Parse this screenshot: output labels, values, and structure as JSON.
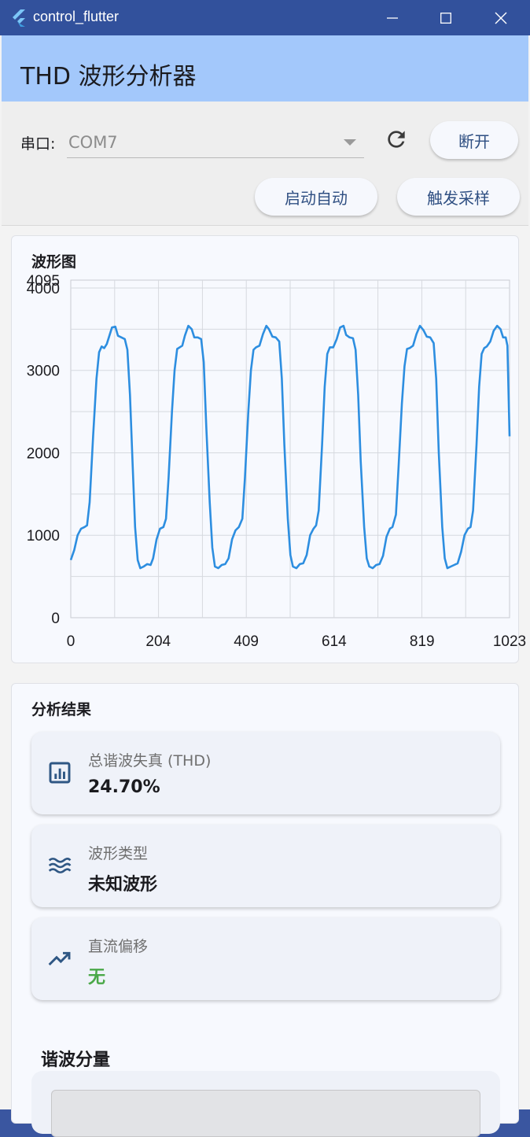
{
  "window": {
    "title": "control_flutter"
  },
  "appbar": {
    "title": "THD 波形分析器"
  },
  "controls": {
    "port_label": "串口:",
    "port_value": "COM7",
    "disconnect_label": "断开",
    "auto_label": "启动自动",
    "trigger_label": "触发采样"
  },
  "waveform": {
    "title": "波形图",
    "top_label": "4095"
  },
  "chart_data": {
    "type": "line",
    "title": "波形图",
    "x_ticks": [
      "0",
      "204",
      "409",
      "614",
      "819",
      "1023"
    ],
    "y_ticks": [
      "0",
      "1000",
      "2000",
      "3000",
      "4000"
    ],
    "xlim": [
      0,
      1023
    ],
    "ylim": [
      0,
      4095
    ],
    "grid": true,
    "color": "#2d8ee0",
    "series": [
      {
        "points": [
          [
            0,
            700
          ],
          [
            8,
            820
          ],
          [
            16,
            1000
          ],
          [
            24,
            1080
          ],
          [
            32,
            1100
          ],
          [
            38,
            1120
          ],
          [
            44,
            1400
          ],
          [
            52,
            2200
          ],
          [
            60,
            2900
          ],
          [
            66,
            3220
          ],
          [
            72,
            3290
          ],
          [
            78,
            3270
          ],
          [
            84,
            3320
          ],
          [
            90,
            3420
          ],
          [
            96,
            3520
          ],
          [
            104,
            3530
          ],
          [
            110,
            3420
          ],
          [
            118,
            3400
          ],
          [
            126,
            3380
          ],
          [
            132,
            3250
          ],
          [
            138,
            2700
          ],
          [
            144,
            1900
          ],
          [
            150,
            1100
          ],
          [
            156,
            700
          ],
          [
            162,
            600
          ],
          [
            170,
            620
          ],
          [
            178,
            650
          ],
          [
            186,
            640
          ],
          [
            192,
            720
          ],
          [
            200,
            950
          ],
          [
            208,
            1080
          ],
          [
            216,
            1100
          ],
          [
            222,
            1200
          ],
          [
            228,
            1700
          ],
          [
            236,
            2500
          ],
          [
            242,
            3000
          ],
          [
            248,
            3260
          ],
          [
            254,
            3280
          ],
          [
            260,
            3300
          ],
          [
            266,
            3420
          ],
          [
            274,
            3540
          ],
          [
            282,
            3500
          ],
          [
            288,
            3400
          ],
          [
            296,
            3400
          ],
          [
            304,
            3380
          ],
          [
            310,
            3100
          ],
          [
            316,
            2300
          ],
          [
            324,
            1400
          ],
          [
            330,
            850
          ],
          [
            336,
            620
          ],
          [
            344,
            600
          ],
          [
            352,
            640
          ],
          [
            360,
            650
          ],
          [
            368,
            720
          ],
          [
            376,
            950
          ],
          [
            384,
            1060
          ],
          [
            392,
            1100
          ],
          [
            400,
            1200
          ],
          [
            406,
            1700
          ],
          [
            414,
            2500
          ],
          [
            420,
            3000
          ],
          [
            426,
            3250
          ],
          [
            432,
            3280
          ],
          [
            440,
            3300
          ],
          [
            448,
            3440
          ],
          [
            456,
            3540
          ],
          [
            462,
            3500
          ],
          [
            470,
            3410
          ],
          [
            478,
            3400
          ],
          [
            486,
            3350
          ],
          [
            492,
            2900
          ],
          [
            498,
            2100
          ],
          [
            506,
            1200
          ],
          [
            512,
            760
          ],
          [
            518,
            620
          ],
          [
            526,
            600
          ],
          [
            534,
            650
          ],
          [
            542,
            660
          ],
          [
            550,
            760
          ],
          [
            558,
            1000
          ],
          [
            566,
            1080
          ],
          [
            572,
            1120
          ],
          [
            578,
            1300
          ],
          [
            586,
            2100
          ],
          [
            592,
            2800
          ],
          [
            598,
            3200
          ],
          [
            604,
            3280
          ],
          [
            612,
            3280
          ],
          [
            620,
            3380
          ],
          [
            628,
            3520
          ],
          [
            636,
            3540
          ],
          [
            642,
            3430
          ],
          [
            650,
            3400
          ],
          [
            658,
            3390
          ],
          [
            664,
            3250
          ],
          [
            670,
            2700
          ],
          [
            676,
            1900
          ],
          [
            684,
            1100
          ],
          [
            690,
            720
          ],
          [
            696,
            620
          ],
          [
            704,
            600
          ],
          [
            712,
            640
          ],
          [
            720,
            650
          ],
          [
            728,
            750
          ],
          [
            736,
            980
          ],
          [
            744,
            1080
          ],
          [
            750,
            1100
          ],
          [
            758,
            1250
          ],
          [
            764,
            1800
          ],
          [
            772,
            2600
          ],
          [
            778,
            3050
          ],
          [
            784,
            3260
          ],
          [
            790,
            3270
          ],
          [
            798,
            3300
          ],
          [
            806,
            3440
          ],
          [
            814,
            3540
          ],
          [
            822,
            3490
          ],
          [
            830,
            3410
          ],
          [
            838,
            3400
          ],
          [
            846,
            3330
          ],
          [
            852,
            2900
          ],
          [
            858,
            2000
          ],
          [
            866,
            1100
          ],
          [
            872,
            720
          ],
          [
            878,
            600
          ],
          [
            886,
            620
          ],
          [
            894,
            640
          ],
          [
            902,
            660
          ],
          [
            910,
            800
          ],
          [
            918,
            1000
          ],
          [
            926,
            1080
          ],
          [
            932,
            1100
          ],
          [
            938,
            1300
          ],
          [
            946,
            2100
          ],
          [
            952,
            2800
          ],
          [
            958,
            3200
          ],
          [
            964,
            3270
          ],
          [
            970,
            3290
          ],
          [
            978,
            3350
          ],
          [
            986,
            3480
          ],
          [
            994,
            3540
          ],
          [
            1002,
            3500
          ],
          [
            1008,
            3400
          ],
          [
            1014,
            3400
          ],
          [
            1018,
            3300
          ],
          [
            1023,
            2200
          ]
        ]
      }
    ]
  },
  "results": {
    "title": "分析结果",
    "thd": {
      "label": "总谐波失真 (THD)",
      "value": "24.70%"
    },
    "wave_type": {
      "label": "波形类型",
      "value": "未知波形"
    },
    "dc_offset": {
      "label": "直流偏移",
      "value": "无",
      "value_color": "#4aa848"
    }
  },
  "harmonics": {
    "title": "谐波分量"
  }
}
